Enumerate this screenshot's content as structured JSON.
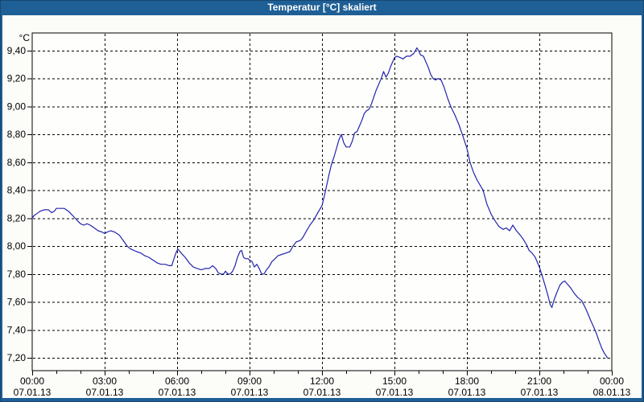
{
  "window": {
    "title": "Temperatur [°C] skaliert"
  },
  "colors": {
    "titlebar": "#1e5f96",
    "frame": "#1e5f96",
    "frame_edge": "#17466f",
    "background": "#fcfdf9",
    "plot_background": "#fefffc",
    "grid": "#000000",
    "curve": "#2323ad"
  },
  "chart_data": {
    "type": "line",
    "title": "Temperatur [°C] skaliert",
    "grid": {
      "style": "dashed",
      "horizontal": true,
      "vertical": true
    },
    "y_axis": {
      "unit_label": "°C",
      "range": [
        7.2,
        9.4
      ],
      "tick_values": [
        9.4,
        9.2,
        9.0,
        8.8,
        8.6,
        8.4,
        8.2,
        8.0,
        7.8,
        7.6,
        7.4,
        7.2
      ],
      "tick_labels": [
        "9,40",
        "9,20",
        "9,00",
        "8,80",
        "8,60",
        "8,40",
        "8,20",
        "8,00",
        "7,80",
        "7,60",
        "7,40",
        "7,20"
      ]
    },
    "x_axis": {
      "range_hours": [
        0,
        24
      ],
      "minor_tick_step_hours": 1,
      "major_tick_hours": [
        0,
        3,
        6,
        9,
        12,
        15,
        18,
        21,
        24
      ],
      "tick_times": [
        "00:00",
        "03:00",
        "06:00",
        "09:00",
        "12:00",
        "15:00",
        "18:00",
        "21:00",
        "00:00"
      ],
      "tick_dates": [
        "07.01.13",
        "07.01.13",
        "07.01.13",
        "07.01.13",
        "07.01.13",
        "07.01.13",
        "07.01.13",
        "07.01.13",
        "08.01.13"
      ]
    },
    "series": [
      {
        "name": "Temperatur",
        "color": "#2323ad",
        "points": [
          [
            0.0,
            8.2
          ],
          [
            0.08,
            8.22
          ],
          [
            0.17,
            8.23
          ],
          [
            0.33,
            8.25
          ],
          [
            0.5,
            8.26
          ],
          [
            0.67,
            8.26
          ],
          [
            0.8,
            8.24
          ],
          [
            0.92,
            8.25
          ],
          [
            1.0,
            8.27
          ],
          [
            1.17,
            8.27
          ],
          [
            1.33,
            8.27
          ],
          [
            1.5,
            8.25
          ],
          [
            1.67,
            8.22
          ],
          [
            1.83,
            8.19
          ],
          [
            2.0,
            8.16
          ],
          [
            2.13,
            8.15
          ],
          [
            2.27,
            8.16
          ],
          [
            2.4,
            8.15
          ],
          [
            2.57,
            8.13
          ],
          [
            2.73,
            8.11
          ],
          [
            2.9,
            8.1
          ],
          [
            3.0,
            8.09
          ],
          [
            3.1,
            8.1
          ],
          [
            3.25,
            8.11
          ],
          [
            3.42,
            8.1
          ],
          [
            3.6,
            8.08
          ],
          [
            3.77,
            8.04
          ],
          [
            3.93,
            8.0
          ],
          [
            4.07,
            7.98
          ],
          [
            4.2,
            7.97
          ],
          [
            4.33,
            7.96
          ],
          [
            4.5,
            7.95
          ],
          [
            4.67,
            7.93
          ],
          [
            4.83,
            7.92
          ],
          [
            5.0,
            7.9
          ],
          [
            5.17,
            7.88
          ],
          [
            5.33,
            7.87
          ],
          [
            5.5,
            7.87
          ],
          [
            5.67,
            7.86
          ],
          [
            5.78,
            7.86
          ],
          [
            5.87,
            7.91
          ],
          [
            5.95,
            7.95
          ],
          [
            6.03,
            7.98
          ],
          [
            6.17,
            7.95
          ],
          [
            6.33,
            7.92
          ],
          [
            6.5,
            7.88
          ],
          [
            6.67,
            7.85
          ],
          [
            6.83,
            7.84
          ],
          [
            7.0,
            7.83
          ],
          [
            7.17,
            7.84
          ],
          [
            7.33,
            7.84
          ],
          [
            7.47,
            7.86
          ],
          [
            7.6,
            7.84
          ],
          [
            7.7,
            7.81
          ],
          [
            7.8,
            7.8
          ],
          [
            7.93,
            7.8
          ],
          [
            8.0,
            7.82
          ],
          [
            8.1,
            7.8
          ],
          [
            8.2,
            7.8
          ],
          [
            8.3,
            7.82
          ],
          [
            8.4,
            7.86
          ],
          [
            8.5,
            7.92
          ],
          [
            8.6,
            7.96
          ],
          [
            8.67,
            7.97
          ],
          [
            8.75,
            7.92
          ],
          [
            8.83,
            7.91
          ],
          [
            8.93,
            7.91
          ],
          [
            9.0,
            7.9
          ],
          [
            9.1,
            7.89
          ],
          [
            9.2,
            7.85
          ],
          [
            9.3,
            7.87
          ],
          [
            9.4,
            7.84
          ],
          [
            9.5,
            7.8
          ],
          [
            9.6,
            7.8
          ],
          [
            9.7,
            7.83
          ],
          [
            9.8,
            7.85
          ],
          [
            9.93,
            7.89
          ],
          [
            10.0,
            7.9
          ],
          [
            10.17,
            7.93
          ],
          [
            10.33,
            7.94
          ],
          [
            10.5,
            7.95
          ],
          [
            10.67,
            7.96
          ],
          [
            10.8,
            8.0
          ],
          [
            10.93,
            8.03
          ],
          [
            11.1,
            8.04
          ],
          [
            11.2,
            8.06
          ],
          [
            11.33,
            8.1
          ],
          [
            11.5,
            8.15
          ],
          [
            11.67,
            8.19
          ],
          [
            11.83,
            8.24
          ],
          [
            12.0,
            8.29
          ],
          [
            12.1,
            8.36
          ],
          [
            12.2,
            8.44
          ],
          [
            12.3,
            8.52
          ],
          [
            12.4,
            8.59
          ],
          [
            12.5,
            8.64
          ],
          [
            12.6,
            8.7
          ],
          [
            12.7,
            8.76
          ],
          [
            12.8,
            8.8
          ],
          [
            12.9,
            8.74
          ],
          [
            13.0,
            8.71
          ],
          [
            13.15,
            8.71
          ],
          [
            13.25,
            8.75
          ],
          [
            13.35,
            8.81
          ],
          [
            13.45,
            8.82
          ],
          [
            13.55,
            8.86
          ],
          [
            13.65,
            8.9
          ],
          [
            13.75,
            8.95
          ],
          [
            13.85,
            8.97
          ],
          [
            13.95,
            8.98
          ],
          [
            14.05,
            9.02
          ],
          [
            14.15,
            9.07
          ],
          [
            14.25,
            9.12
          ],
          [
            14.35,
            9.16
          ],
          [
            14.45,
            9.2
          ],
          [
            14.55,
            9.25
          ],
          [
            14.65,
            9.21
          ],
          [
            14.75,
            9.24
          ],
          [
            14.85,
            9.29
          ],
          [
            14.95,
            9.33
          ],
          [
            15.0,
            9.35
          ],
          [
            15.1,
            9.36
          ],
          [
            15.25,
            9.35
          ],
          [
            15.35,
            9.34
          ],
          [
            15.5,
            9.36
          ],
          [
            15.65,
            9.36
          ],
          [
            15.8,
            9.38
          ],
          [
            15.93,
            9.42
          ],
          [
            16.0,
            9.4
          ],
          [
            16.08,
            9.37
          ],
          [
            16.2,
            9.36
          ],
          [
            16.3,
            9.32
          ],
          [
            16.4,
            9.28
          ],
          [
            16.5,
            9.23
          ],
          [
            16.6,
            9.2
          ],
          [
            16.7,
            9.19
          ],
          [
            16.8,
            9.2
          ],
          [
            16.93,
            9.19
          ],
          [
            17.05,
            9.14
          ],
          [
            17.2,
            9.06
          ],
          [
            17.33,
            9.0
          ],
          [
            17.5,
            8.94
          ],
          [
            17.67,
            8.87
          ],
          [
            17.83,
            8.79
          ],
          [
            18.0,
            8.7
          ],
          [
            18.13,
            8.6
          ],
          [
            18.27,
            8.53
          ],
          [
            18.43,
            8.47
          ],
          [
            18.57,
            8.43
          ],
          [
            18.67,
            8.4
          ],
          [
            18.83,
            8.3
          ],
          [
            19.0,
            8.23
          ],
          [
            19.17,
            8.18
          ],
          [
            19.33,
            8.14
          ],
          [
            19.5,
            8.12
          ],
          [
            19.63,
            8.13
          ],
          [
            19.77,
            8.11
          ],
          [
            19.9,
            8.15
          ],
          [
            20.05,
            8.11
          ],
          [
            20.2,
            8.08
          ],
          [
            20.33,
            8.05
          ],
          [
            20.47,
            8.01
          ],
          [
            20.57,
            7.97
          ],
          [
            20.7,
            7.95
          ],
          [
            20.83,
            7.92
          ],
          [
            21.0,
            7.85
          ],
          [
            21.13,
            7.78
          ],
          [
            21.25,
            7.71
          ],
          [
            21.35,
            7.65
          ],
          [
            21.45,
            7.58
          ],
          [
            21.52,
            7.56
          ],
          [
            21.62,
            7.62
          ],
          [
            21.73,
            7.67
          ],
          [
            21.85,
            7.72
          ],
          [
            21.95,
            7.74
          ],
          [
            22.05,
            7.75
          ],
          [
            22.15,
            7.73
          ],
          [
            22.3,
            7.7
          ],
          [
            22.45,
            7.66
          ],
          [
            22.6,
            7.63
          ],
          [
            22.75,
            7.61
          ],
          [
            22.87,
            7.57
          ],
          [
            23.0,
            7.52
          ],
          [
            23.12,
            7.47
          ],
          [
            23.25,
            7.42
          ],
          [
            23.35,
            7.38
          ],
          [
            23.45,
            7.33
          ],
          [
            23.58,
            7.27
          ],
          [
            23.7,
            7.23
          ],
          [
            23.82,
            7.2
          ]
        ]
      }
    ]
  }
}
